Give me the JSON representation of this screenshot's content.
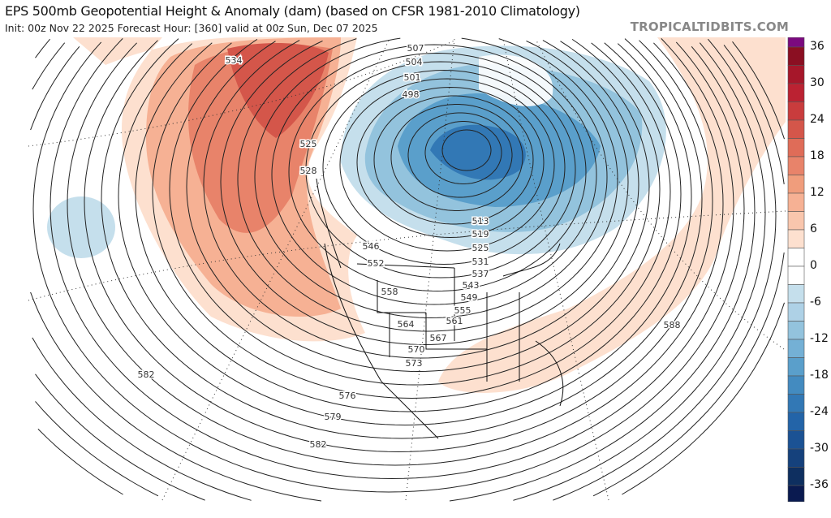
{
  "header": {
    "title": "EPS 500mb Geopotential Height & Anomaly (dam) (based on CFSR 1981-2010 Climatology)",
    "subtitle": "Init: 00z Nov 22 2025   Forecast Hour: [360]   valid at 00z Sun, Dec 07 2025",
    "brand": "TROPICALTIDBITS.COM"
  },
  "colorbar": {
    "ticks": [
      "36",
      "30",
      "24",
      "18",
      "12",
      "6",
      "0",
      "-6",
      "-12",
      "-18",
      "-24",
      "-30",
      "-36"
    ],
    "colors": [
      "#7b0a7f",
      "#8b0f22",
      "#a6172a",
      "#bb2232",
      "#c93c3d",
      "#d4564a",
      "#df6c58",
      "#e8836a",
      "#f09d7c",
      "#f6b194",
      "#f9c6ad",
      "#fde0cf",
      "#ffffff",
      "#ffffff",
      "#c5dfec",
      "#aed1e6",
      "#93c3dd",
      "#74b0d5",
      "#5a9fcb",
      "#438bc0",
      "#3278b5",
      "#2364a8",
      "#1b5294",
      "#15417c",
      "#0e2f60",
      "#0a1a50"
    ]
  },
  "contour_labels": [
    "534",
    "507",
    "504",
    "501",
    "498",
    "525",
    "528",
    "546",
    "552",
    "558",
    "564",
    "570",
    "573",
    "576",
    "579",
    "582",
    "582",
    "513",
    "519",
    "525",
    "531",
    "537",
    "543",
    "549",
    "555",
    "561",
    "567",
    "588"
  ]
}
